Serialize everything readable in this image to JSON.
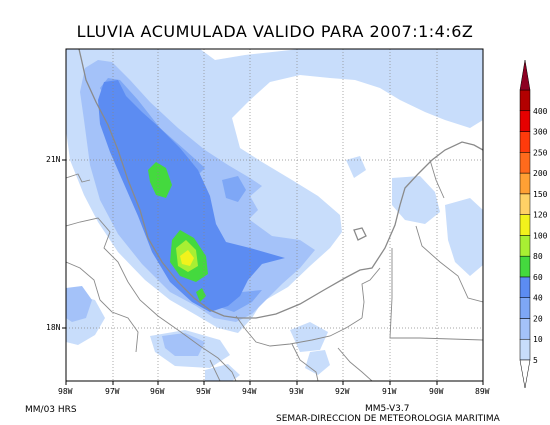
{
  "title": "LLUVIA ACUMULADA VALIDO PARA 2007:1:4:6Z",
  "units_label": "MM/03 HRS",
  "model_label": "MM5-V3.7",
  "credit_label": "SEMAR-DIRECCION DE METEOROLOGIA MARITIMA",
  "lon_labels": [
    "98W",
    "97W",
    "96W",
    "95W",
    "94W",
    "93W",
    "92W",
    "91W",
    "90W",
    "89W"
  ],
  "lat_labels": [
    "21N",
    "18N"
  ],
  "colorbar": {
    "levels": [
      "5",
      "10",
      "20",
      "40",
      "60",
      "80",
      "100",
      "120",
      "150",
      "200",
      "250",
      "300",
      "400"
    ],
    "colors": [
      "#c8ddfb",
      "#a4c2f9",
      "#7ea7f6",
      "#5c8cf2",
      "#44d93e",
      "#a8ef33",
      "#f2f21c",
      "#ffd166",
      "#ffa034",
      "#ff6a1c",
      "#ff3a0b",
      "#e60000",
      "#b20000",
      "#8c0022"
    ]
  }
}
